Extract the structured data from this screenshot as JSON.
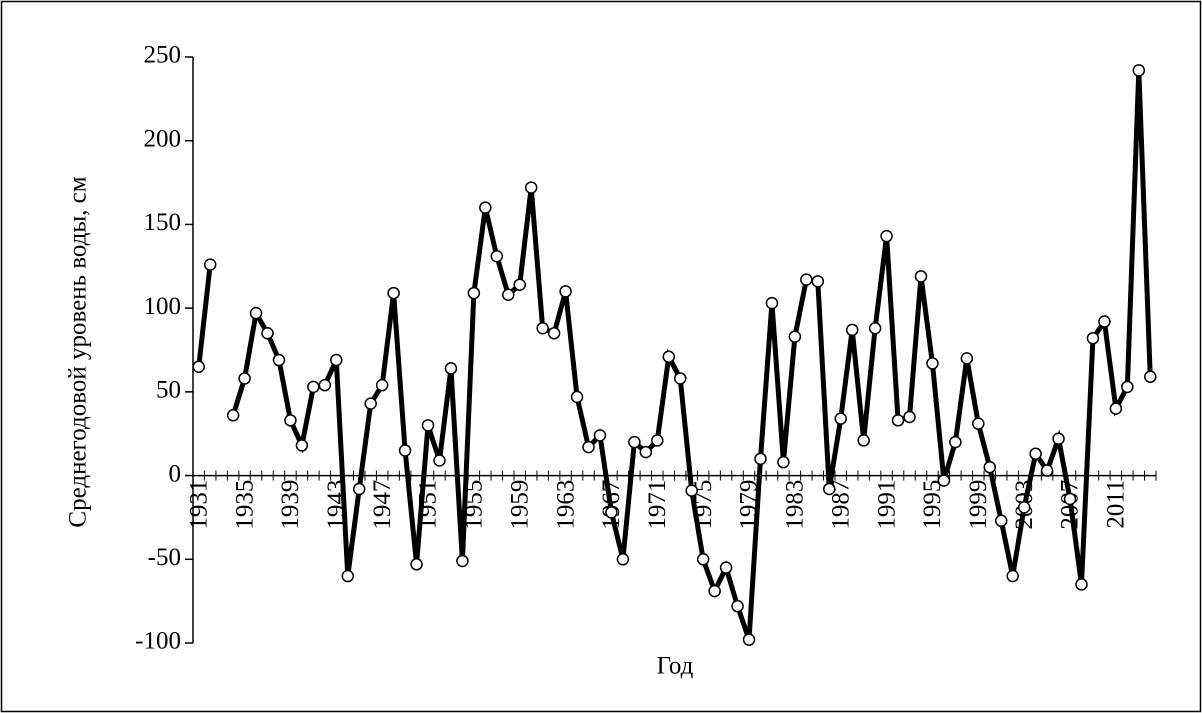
{
  "chart_data": {
    "type": "line",
    "ylabel": "Среднегодовой уровень воды, см",
    "xlabel": "Год",
    "categories": [
      "1931",
      null,
      null,
      null,
      "1935",
      null,
      null,
      null,
      "1939",
      null,
      null,
      null,
      "1943",
      null,
      null,
      null,
      "1947",
      null,
      null,
      null,
      "1951",
      null,
      null,
      null,
      "1955",
      null,
      null,
      null,
      "1959",
      null,
      null,
      null,
      "1963",
      null,
      null,
      null,
      "1967",
      null,
      null,
      null,
      "1971",
      null,
      null,
      null,
      "1975",
      null,
      null,
      null,
      "1979",
      null,
      null,
      null,
      "1983",
      null,
      null,
      null,
      "1987",
      null,
      null,
      null,
      "1991",
      null,
      null,
      null,
      "1995",
      null,
      null,
      null,
      "1999",
      null,
      null,
      null,
      "2003",
      null,
      null,
      null,
      "2007",
      null,
      null,
      null,
      "2011",
      null,
      null,
      null
    ],
    "series": [
      {
        "name": "Среднегодовой уровень воды",
        "color": "#000000",
        "values": [
          65,
          126,
          null,
          36,
          58,
          97,
          85,
          69,
          33,
          18,
          53,
          54,
          69,
          -60,
          -8,
          43,
          54,
          109,
          15,
          -53,
          30,
          9,
          64,
          -51,
          109,
          160,
          131,
          108,
          114,
          172,
          88,
          85,
          110,
          47,
          17,
          24,
          -22,
          -50,
          20,
          14,
          21,
          71,
          58,
          -9,
          -50,
          -69,
          -55,
          -78,
          -98,
          10,
          103,
          8,
          83,
          117,
          116,
          -8,
          34,
          87,
          21,
          88,
          143,
          33,
          35,
          119,
          67,
          -3,
          20,
          70,
          31,
          5,
          -27,
          -60,
          -19,
          13,
          3,
          22,
          -14,
          -65,
          82,
          92,
          40,
          53,
          242,
          59
        ]
      }
    ],
    "ylim": [
      -100,
      250
    ],
    "yticks": [
      -100,
      -50,
      0,
      50,
      100,
      150,
      200,
      250
    ],
    "grid": false
  }
}
